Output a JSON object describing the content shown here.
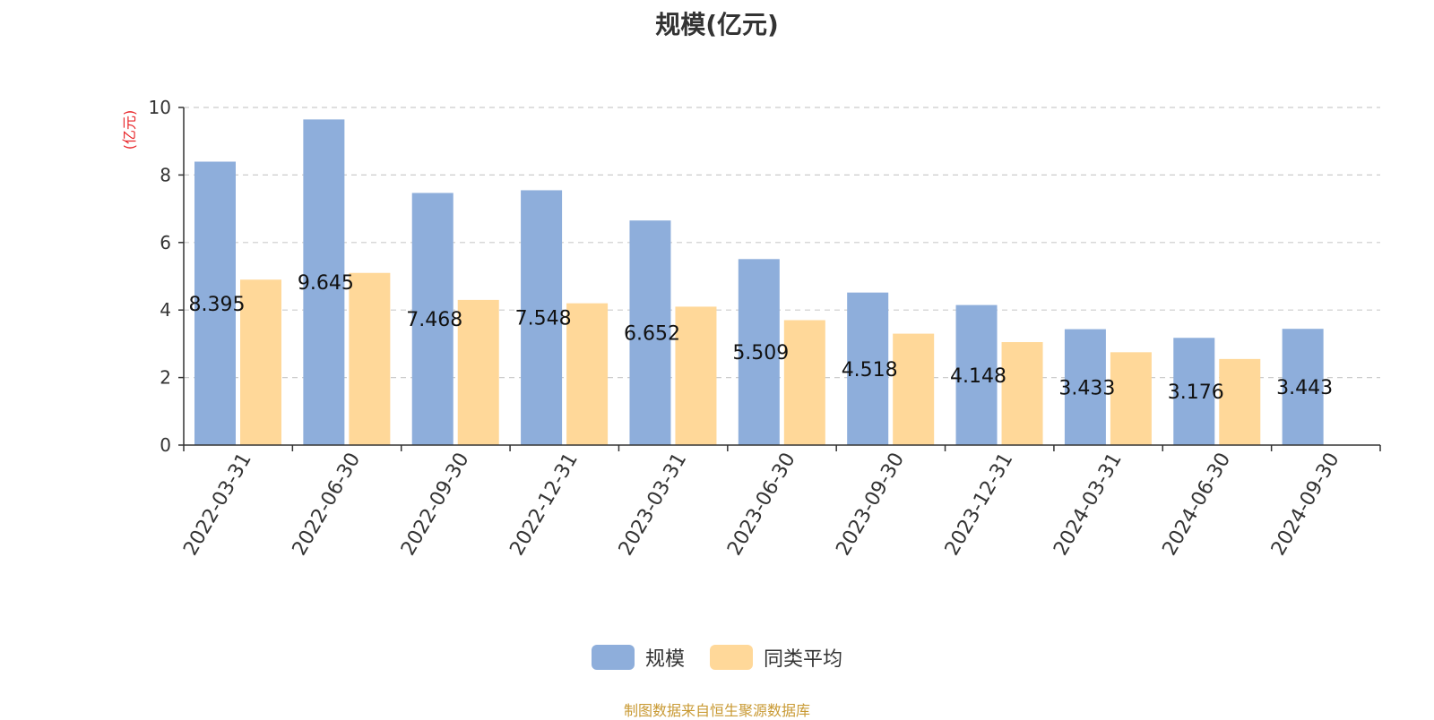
{
  "colors": {
    "series1": "#8eaedb",
    "series2": "#ffd899",
    "unit_label": "#e8262a",
    "source": "#c99a34"
  },
  "chart_data": {
    "type": "bar",
    "title": "规模(亿元)",
    "ylabel": "(亿元)",
    "ylim": [
      0,
      10
    ],
    "yticks": [
      0,
      2,
      4,
      6,
      8,
      10
    ],
    "grid": true,
    "legend_position": "bottom",
    "categories": [
      "2022-03-31",
      "2022-06-30",
      "2022-09-30",
      "2022-12-31",
      "2023-03-31",
      "2023-06-30",
      "2023-09-30",
      "2023-12-31",
      "2024-03-31",
      "2024-06-30",
      "2024-09-30"
    ],
    "series": [
      {
        "name": "规模",
        "values": [
          8.395,
          9.645,
          7.468,
          7.548,
          6.652,
          5.509,
          4.518,
          4.148,
          3.433,
          3.176,
          3.443
        ],
        "labels": [
          "8.395",
          "9.645",
          "7.468",
          "7.548",
          "6.652",
          "5.509",
          "4.518",
          "4.148",
          "3.433",
          "3.176",
          "3.443"
        ]
      },
      {
        "name": "同类平均",
        "values": [
          4.9,
          5.1,
          4.3,
          4.2,
          4.1,
          3.7,
          3.3,
          3.05,
          2.75,
          2.55,
          null
        ]
      }
    ]
  },
  "source_note": "制图数据来自恒生聚源数据库"
}
